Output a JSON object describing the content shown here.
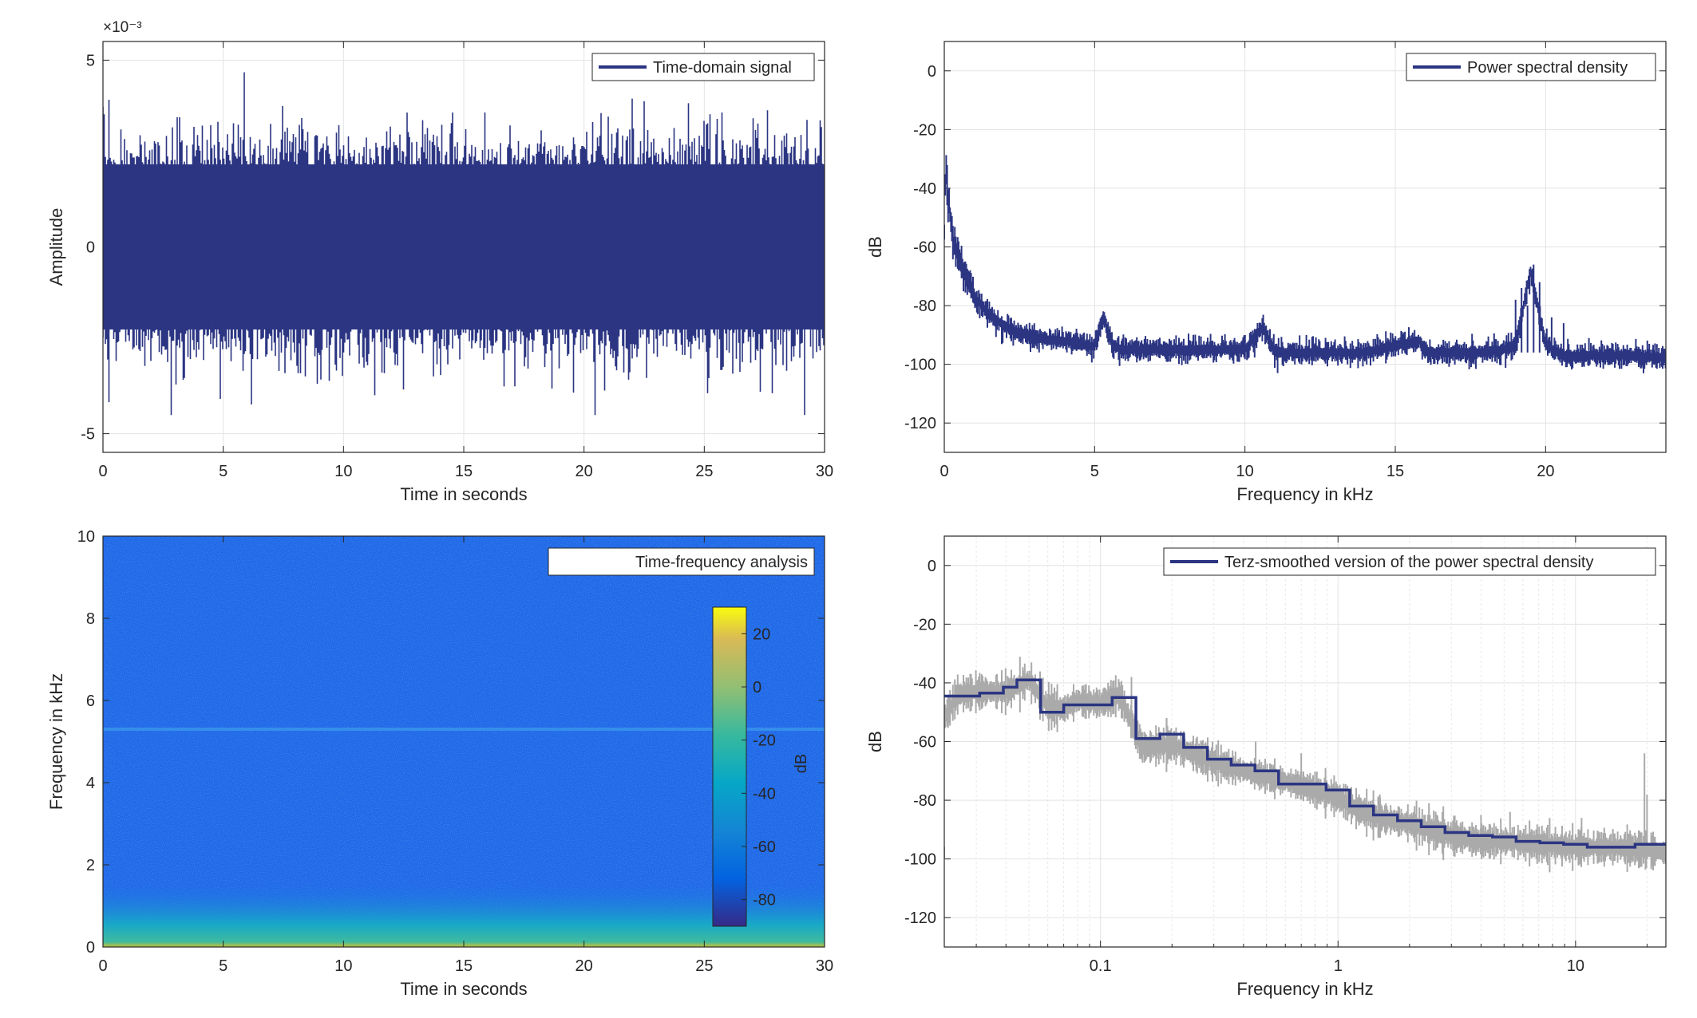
{
  "chart_data": [
    {
      "type": "line",
      "title": "",
      "xlabel": "Time in seconds",
      "ylabel": "Amplitude",
      "xlim": [
        0,
        30
      ],
      "ylim": [
        -0.0055,
        0.0055
      ],
      "xticks": [
        "0",
        "5",
        "10",
        "15",
        "20",
        "25",
        "30"
      ],
      "yticks": [
        "-5",
        "0",
        "5"
      ],
      "y_exponent_label": "×10⁻³",
      "grid": true,
      "legend": {
        "position": "top-right",
        "entries": [
          "Time-domain signal"
        ]
      },
      "series": [
        {
          "name": "Time-domain signal",
          "color": "#2b3582",
          "envelope": {
            "typical": 0.0026,
            "peak_max": 0.0036,
            "peak_min": -0.0045
          }
        }
      ]
    },
    {
      "type": "line",
      "title": "",
      "xlabel": "Frequency in kHz",
      "ylabel": "dB",
      "xlim": [
        0,
        24
      ],
      "ylim": [
        -130,
        10
      ],
      "xticks": [
        "0",
        "5",
        "10",
        "15",
        "20"
      ],
      "yticks": [
        "0",
        "-20",
        "-40",
        "-60",
        "-80",
        "-100",
        "-120"
      ],
      "grid": true,
      "legend": {
        "position": "top-right",
        "entries": [
          "Power spectral density"
        ]
      },
      "series": [
        {
          "name": "Power spectral density",
          "color": "#2b3582",
          "x": [
            0,
            0.05,
            0.1,
            0.2,
            0.3,
            0.5,
            0.8,
            1.0,
            1.5,
            2.0,
            2.5,
            3.0,
            4.0,
            5.0,
            5.3,
            5.6,
            6,
            8,
            10,
            10.6,
            11,
            12,
            14,
            15.8,
            16,
            18,
            19,
            19.5,
            20,
            20.5,
            21,
            22,
            23,
            24
          ],
          "values": [
            -55,
            -32,
            -40,
            -50,
            -58,
            -65,
            -72,
            -77,
            -83,
            -87,
            -89,
            -91,
            -92,
            -94,
            -84,
            -94,
            -95,
            -95,
            -95,
            -87,
            -96,
            -96,
            -96,
            -92,
            -96,
            -96,
            -94,
            -68,
            -93,
            -97,
            -97,
            -97,
            -97,
            -98
          ]
        }
      ]
    },
    {
      "type": "heatmap",
      "title": "",
      "xlabel": "Time in seconds",
      "ylabel": "Frequency in kHz",
      "xlim": [
        0,
        30
      ],
      "ylim": [
        0,
        10
      ],
      "xticks": [
        "0",
        "5",
        "10",
        "15",
        "20",
        "25",
        "30"
      ],
      "yticks": [
        "0",
        "2",
        "4",
        "6",
        "8",
        "10"
      ],
      "legend": {
        "position": "top-right",
        "entries": [
          "Time-frequency analysis"
        ]
      },
      "colorbar": {
        "label": "dB",
        "ticks": [
          "20",
          "0",
          "-20",
          "-40",
          "-60",
          "-80"
        ],
        "range": [
          -90,
          30
        ],
        "colormap": "parula"
      },
      "features": {
        "background_db": -62,
        "tone_khz": 5.3,
        "low_frequency_energy_db": -25
      }
    },
    {
      "type": "line",
      "title": "",
      "xlabel": "Frequency in kHz",
      "ylabel": "dB",
      "xscale": "log",
      "xlim": [
        0.022,
        24
      ],
      "ylim": [
        -130,
        10
      ],
      "xticks": [
        "0.1",
        "1",
        "10"
      ],
      "yticks": [
        "0",
        "-20",
        "-40",
        "-60",
        "-80",
        "-100",
        "-120"
      ],
      "grid": true,
      "legend": {
        "position": "top-right",
        "entries": [
          "Terz-smoothed version of the power spectral density"
        ]
      },
      "series": [
        {
          "name": "",
          "color": "#aaaaaa",
          "x": [
            0.022,
            0.025,
            0.03,
            0.04,
            0.05,
            0.06,
            0.07,
            0.08,
            0.1,
            0.12,
            0.15,
            0.2,
            0.3,
            0.4,
            0.5,
            0.7,
            1.0,
            1.2,
            1.5,
            2,
            3,
            4,
            5,
            7,
            10,
            15,
            20,
            24
          ],
          "values": [
            -52,
            -44,
            -43,
            -43,
            -39,
            -48,
            -49,
            -46,
            -47,
            -44,
            -62,
            -61,
            -67,
            -70,
            -72,
            -75,
            -79,
            -83,
            -86,
            -88,
            -92,
            -94,
            -94,
            -95,
            -96,
            -96,
            -97,
            -98
          ]
        },
        {
          "name": "Terz-smoothed version of the power spectral density",
          "color": "#2b3582",
          "steps": [
            {
              "x0": 0.022,
              "x1": 0.031,
              "y": -44.5
            },
            {
              "x0": 0.031,
              "x1": 0.039,
              "y": -43.5
            },
            {
              "x0": 0.039,
              "x1": 0.0445,
              "y": -41.5
            },
            {
              "x0": 0.0445,
              "x1": 0.056,
              "y": -39
            },
            {
              "x0": 0.056,
              "x1": 0.07,
              "y": -50
            },
            {
              "x0": 0.07,
              "x1": 0.089,
              "y": -47.5
            },
            {
              "x0": 0.089,
              "x1": 0.112,
              "y": -47.5
            },
            {
              "x0": 0.112,
              "x1": 0.141,
              "y": -45
            },
            {
              "x0": 0.141,
              "x1": 0.178,
              "y": -59
            },
            {
              "x0": 0.178,
              "x1": 0.224,
              "y": -57.5
            },
            {
              "x0": 0.224,
              "x1": 0.282,
              "y": -62
            },
            {
              "x0": 0.282,
              "x1": 0.355,
              "y": -66
            },
            {
              "x0": 0.355,
              "x1": 0.447,
              "y": -68
            },
            {
              "x0": 0.447,
              "x1": 0.562,
              "y": -70
            },
            {
              "x0": 0.562,
              "x1": 0.708,
              "y": -74.5
            },
            {
              "x0": 0.708,
              "x1": 0.891,
              "y": -74.5
            },
            {
              "x0": 0.891,
              "x1": 1.12,
              "y": -76.5
            },
            {
              "x0": 1.12,
              "x1": 1.41,
              "y": -82
            },
            {
              "x0": 1.41,
              "x1": 1.78,
              "y": -85
            },
            {
              "x0": 1.78,
              "x1": 2.24,
              "y": -87
            },
            {
              "x0": 2.24,
              "x1": 2.82,
              "y": -89
            },
            {
              "x0": 2.82,
              "x1": 3.55,
              "y": -91
            },
            {
              "x0": 3.55,
              "x1": 4.47,
              "y": -92
            },
            {
              "x0": 4.47,
              "x1": 5.62,
              "y": -92.5
            },
            {
              "x0": 5.62,
              "x1": 7.08,
              "y": -94
            },
            {
              "x0": 7.08,
              "x1": 8.91,
              "y": -94.5
            },
            {
              "x0": 8.91,
              "x1": 11.2,
              "y": -95
            },
            {
              "x0": 11.2,
              "x1": 14.1,
              "y": -96
            },
            {
              "x0": 14.1,
              "x1": 17.8,
              "y": -96
            },
            {
              "x0": 17.8,
              "x1": 24,
              "y": -95
            }
          ]
        }
      ]
    }
  ]
}
